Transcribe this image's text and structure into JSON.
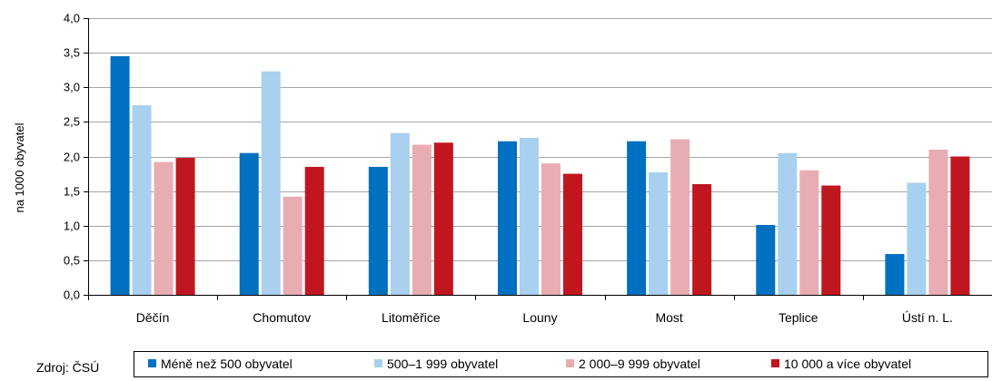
{
  "source_label": "Zdroj: ČSÚ",
  "chart_data": {
    "type": "bar",
    "ylabel": "na 1000 obyvatel",
    "ylim": [
      0,
      4
    ],
    "yticks": [
      "0,0",
      "0,5",
      "1,0",
      "1,5",
      "2,0",
      "2,5",
      "3,0",
      "3,5",
      "4,0"
    ],
    "grid": true,
    "legend_position": "bottom",
    "categories": [
      "Děčín",
      "Chomutov",
      "Litoměřice",
      "Louny",
      "Most",
      "Teplice",
      "Ústí n. L."
    ],
    "series": [
      {
        "name": "Méně než 500 obyvatel",
        "color": "#0070c0",
        "values": [
          3.45,
          2.05,
          1.85,
          2.22,
          2.22,
          1.01,
          0.59
        ]
      },
      {
        "name": "500–1 999 obyvatel",
        "color": "#a9d0ee",
        "values": [
          2.74,
          3.23,
          2.34,
          2.27,
          1.77,
          2.05,
          1.62
        ]
      },
      {
        "name": "2 000–9 999 obyvatel",
        "color": "#e8adb3",
        "values": [
          1.92,
          1.42,
          2.17,
          1.9,
          2.25,
          1.8,
          2.1
        ]
      },
      {
        "name": "10 000 a více obyvatel",
        "color": "#c0161f",
        "values": [
          1.98,
          1.85,
          2.2,
          1.75,
          1.6,
          1.58,
          2.0
        ]
      }
    ]
  }
}
